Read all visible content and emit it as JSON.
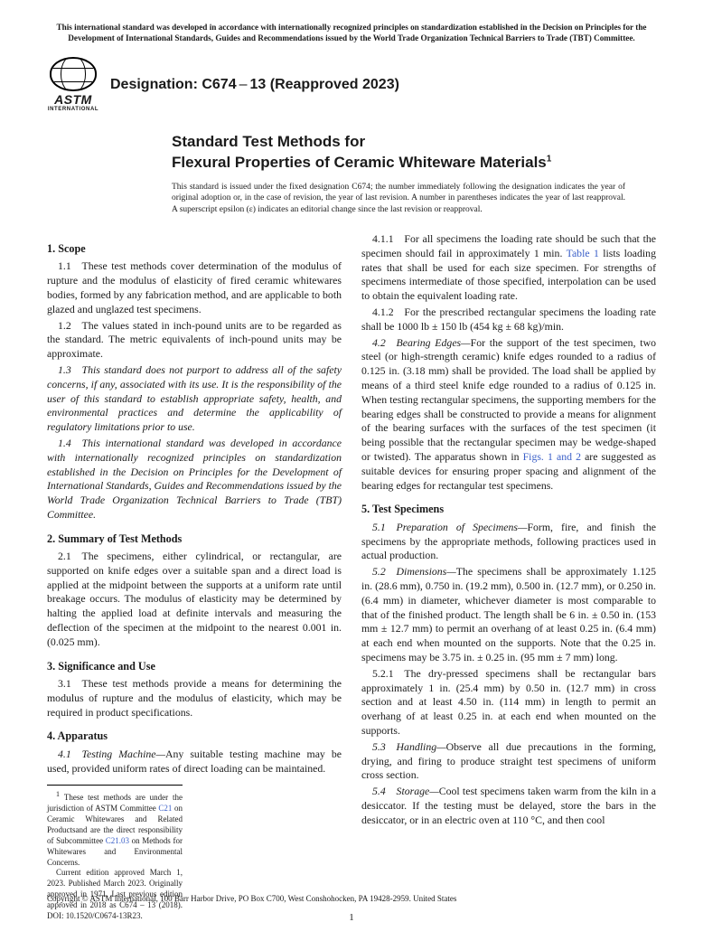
{
  "top_notice": "This international standard was developed in accordance with internationally recognized principles on standardization established in the Decision on Principles for the Development of International Standards, Guides and Recommendations issued by the World Trade Organization Technical Barriers to Trade (TBT) Committee.",
  "logo": {
    "astm": "ASTM",
    "intl": "INTERNATIONAL"
  },
  "designation": {
    "label": "Designation:",
    "code": "C674",
    "dash": "–",
    "year": "13",
    "reapproved": "(Reapproved 2023)"
  },
  "title": {
    "line1": "Standard Test Methods for",
    "line2": "Flexural Properties of Ceramic Whiteware Materials",
    "sup": "1"
  },
  "issuance": "This standard is issued under the fixed designation C674; the number immediately following the designation indicates the year of original adoption or, in the case of revision, the year of last revision. A number in parentheses indicates the year of last reapproval. A superscript epsilon (ε) indicates an editorial change since the last revision or reapproval.",
  "s1": {
    "h": "1. Scope",
    "p1": "1.1 These test methods cover determination of the modulus of rupture and the modulus of elasticity of fired ceramic whitewares bodies, formed by any fabrication method, and are applicable to both glazed and unglazed test specimens.",
    "p2": "1.2 The values stated in inch-pound units are to be regarded as the standard. The metric equivalents of inch-pound units may be approximate.",
    "p3": "1.3 This standard does not purport to address all of the safety concerns, if any, associated with its use. It is the responsibility of the user of this standard to establish appropriate safety, health, and environmental practices and determine the applicability of regulatory limitations prior to use.",
    "p4": "1.4 This international standard was developed in accordance with internationally recognized principles on standardization established in the Decision on Principles for the Development of International Standards, Guides and Recommendations issued by the World Trade Organization Technical Barriers to Trade (TBT) Committee."
  },
  "s2": {
    "h": "2. Summary of Test Methods",
    "p1": "2.1 The specimens, either cylindrical, or rectangular, are supported on knife edges over a suitable span and a direct load is applied at the midpoint between the supports at a uniform rate until breakage occurs. The modulus of elasticity may be determined by halting the applied load at definite intervals and measuring the deflection of the specimen at the midpoint to the nearest 0.001 in. (0.025 mm)."
  },
  "s3": {
    "h": "3. Significance and Use",
    "p1": "3.1 These test methods provide a means for determining the modulus of rupture and the modulus of elasticity, which may be required in product specifications."
  },
  "s4": {
    "h": "4. Apparatus",
    "p1_head": "4.1 Testing Machine—",
    "p1": "Any suitable testing machine may be used, provided uniform rates of direct loading can be maintained.",
    "p411a": "4.1.1 For all specimens the loading rate should be such that the specimen should fail in approximately 1 min. ",
    "p411_link": "Table 1",
    "p411b": " lists loading rates that shall be used for each size specimen. For strengths of specimens intermediate of those specified, interpolation can be used to obtain the equivalent loading rate.",
    "p412": "4.1.2 For the prescribed rectangular specimens the loading rate shall be 1000 lb ± 150 lb (454 kg ± 68 kg)/min.",
    "p42_head": "4.2 Bearing Edges—",
    "p42a": "For the support of the test specimen, two steel (or high-strength ceramic) knife edges rounded to a radius of 0.125 in. (3.18 mm) shall be provided. The load shall be applied by means of a third steel knife edge rounded to a radius of 0.125 in. When testing rectangular specimens, the supporting members for the bearing edges shall be constructed to provide a means for alignment of the bearing surfaces with the surfaces of the test specimen (it being possible that the rectangular specimen may be wedge-shaped or twisted). The apparatus shown in ",
    "p42_link": "Figs. 1 and 2",
    "p42b": " are suggested as suitable devices for ensuring proper spacing and alignment of the bearing edges for rectangular test specimens."
  },
  "s5": {
    "h": "5. Test Specimens",
    "p51_head": "5.1 Preparation of Specimens—",
    "p51": "Form, fire, and finish the specimens by the appropriate methods, following practices used in actual production.",
    "p52_head": "5.2 Dimensions—",
    "p52": "The specimens shall be approximately 1.125 in. (28.6 mm), 0.750 in. (19.2 mm), 0.500 in. (12.7 mm), or 0.250 in. (6.4 mm) in diameter, whichever diameter is most comparable to that of the finished product. The length shall be 6 in. ± 0.50 in. (153 mm ± 12.7 mm) to permit an overhang of at least 0.25 in. (6.4 mm) at each end when mounted on the supports. Note that the 0.25 in. specimens may be 3.75 in. ± 0.25 in. (95 mm ± 7 mm) long.",
    "p521": "5.2.1 The dry-pressed specimens shall be rectangular bars approximately 1 in. (25.4 mm) by 0.50 in. (12.7 mm) in cross section and at least 4.50 in. (114 mm) in length to permit an overhang of at least 0.25 in. at each end when mounted on the supports.",
    "p53_head": "5.3 Handling—",
    "p53": "Observe all due precautions in the forming, drying, and firing to produce straight test specimens of uniform cross section.",
    "p54_head": "5.4 Storage—",
    "p54": "Cool test specimens taken warm from the kiln in a desiccator. If the testing must be delayed, store the bars in the desiccator, or in an electric oven at 110 °C, and then cool"
  },
  "footnotes": {
    "f1_a": "These test methods are under the jurisdiction of ASTM Committee ",
    "f1_l1": "C21",
    "f1_b": " on Ceramic Whitewares and Related Productsand are the direct responsibility of Subcommittee ",
    "f1_l2": "C21.03",
    "f1_c": " on Methods for Whitewares and Environmental Concerns.",
    "f2": "Current edition approved March 1, 2023. Published March 2023. Originally approved in 1971. Last previous edition approved in 2018 as C674 – 13 (2018). DOI: 10.1520/C0674-13R23."
  },
  "footer": {
    "copyright": "Copyright © ASTM International, 100 Barr Harbor Drive, PO Box C700, West Conshohocken, PA 19428-2959. United States",
    "page": "1"
  }
}
